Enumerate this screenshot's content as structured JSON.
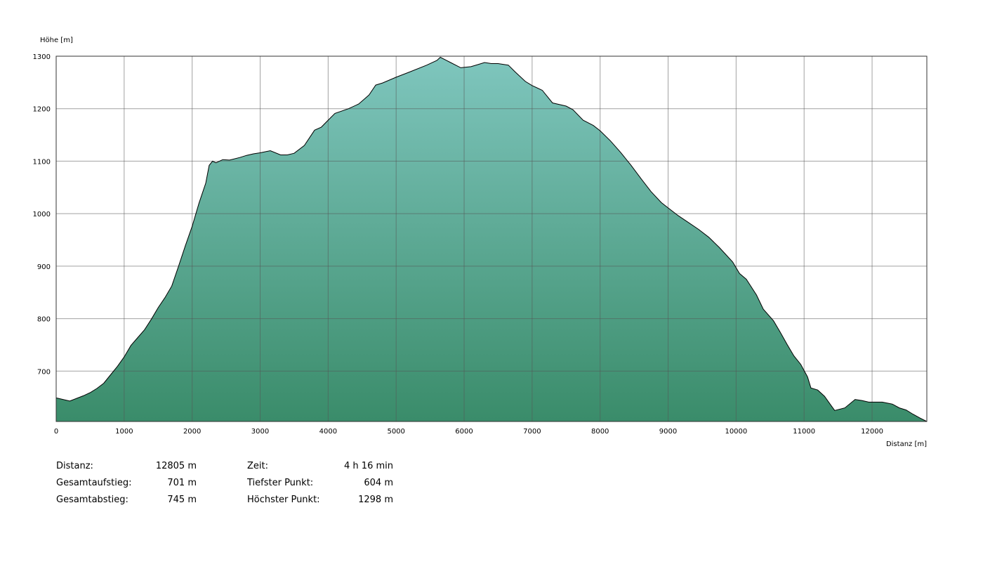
{
  "chart_data": {
    "type": "area",
    "ylabel": "Höhe [m]",
    "xlabel": "Distanz [m]",
    "xlim": [
      0,
      12805
    ],
    "ylim": [
      604,
      1300
    ],
    "x_ticks": [
      0,
      1000,
      2000,
      3000,
      4000,
      5000,
      6000,
      7000,
      8000,
      9000,
      10000,
      11000,
      12000
    ],
    "y_ticks": [
      700,
      800,
      900,
      1000,
      1100,
      1200,
      1300
    ],
    "grid": true,
    "fill_colors": {
      "top": "#7fc6be",
      "bottom": "#3a8c6a",
      "line": "#000000"
    },
    "series": [
      {
        "points": [
          [
            0,
            649
          ],
          [
            200,
            643
          ],
          [
            400,
            653
          ],
          [
            500,
            659
          ],
          [
            600,
            667
          ],
          [
            700,
            677
          ],
          [
            800,
            693
          ],
          [
            900,
            709
          ],
          [
            1000,
            727
          ],
          [
            1100,
            749
          ],
          [
            1200,
            764
          ],
          [
            1300,
            779
          ],
          [
            1400,
            799
          ],
          [
            1500,
            821
          ],
          [
            1600,
            840
          ],
          [
            1700,
            862
          ],
          [
            1800,
            900
          ],
          [
            1900,
            939
          ],
          [
            2000,
            976
          ],
          [
            2100,
            1020
          ],
          [
            2200,
            1058
          ],
          [
            2250,
            1092
          ],
          [
            2300,
            1100
          ],
          [
            2350,
            1097
          ],
          [
            2450,
            1103
          ],
          [
            2550,
            1102
          ],
          [
            2700,
            1107
          ],
          [
            2800,
            1111
          ],
          [
            2900,
            1114
          ],
          [
            3000,
            1116
          ],
          [
            3150,
            1120
          ],
          [
            3300,
            1112
          ],
          [
            3400,
            1112
          ],
          [
            3500,
            1115
          ],
          [
            3650,
            1130
          ],
          [
            3800,
            1159
          ],
          [
            3900,
            1165
          ],
          [
            4000,
            1178
          ],
          [
            4100,
            1191
          ],
          [
            4300,
            1200
          ],
          [
            4450,
            1209
          ],
          [
            4600,
            1226
          ],
          [
            4700,
            1245
          ],
          [
            4800,
            1249
          ],
          [
            5000,
            1260
          ],
          [
            5200,
            1270
          ],
          [
            5450,
            1283
          ],
          [
            5600,
            1292
          ],
          [
            5650,
            1298
          ],
          [
            5800,
            1288
          ],
          [
            5950,
            1278
          ],
          [
            6100,
            1280
          ],
          [
            6200,
            1284
          ],
          [
            6300,
            1288
          ],
          [
            6400,
            1286
          ],
          [
            6500,
            1286
          ],
          [
            6650,
            1283
          ],
          [
            6750,
            1270
          ],
          [
            6900,
            1252
          ],
          [
            7000,
            1244
          ],
          [
            7150,
            1235
          ],
          [
            7300,
            1211
          ],
          [
            7500,
            1205
          ],
          [
            7600,
            1198
          ],
          [
            7750,
            1178
          ],
          [
            7900,
            1168
          ],
          [
            8000,
            1158
          ],
          [
            8150,
            1139
          ],
          [
            8300,
            1117
          ],
          [
            8450,
            1093
          ],
          [
            8600,
            1067
          ],
          [
            8750,
            1042
          ],
          [
            8900,
            1021
          ],
          [
            9000,
            1011
          ],
          [
            9150,
            996
          ],
          [
            9300,
            983
          ],
          [
            9450,
            970
          ],
          [
            9600,
            955
          ],
          [
            9750,
            936
          ],
          [
            9850,
            922
          ],
          [
            9950,
            908
          ],
          [
            10050,
            886
          ],
          [
            10150,
            875
          ],
          [
            10300,
            845
          ],
          [
            10400,
            818
          ],
          [
            10550,
            796
          ],
          [
            10650,
            774
          ],
          [
            10750,
            751
          ],
          [
            10850,
            729
          ],
          [
            10950,
            713
          ],
          [
            11050,
            689
          ],
          [
            11100,
            668
          ],
          [
            11200,
            664
          ],
          [
            11300,
            652
          ],
          [
            11400,
            634
          ],
          [
            11450,
            625
          ],
          [
            11600,
            630
          ],
          [
            11750,
            646
          ],
          [
            11850,
            644
          ],
          [
            11950,
            641
          ],
          [
            12050,
            641
          ],
          [
            12150,
            641
          ],
          [
            12300,
            637
          ],
          [
            12400,
            630
          ],
          [
            12500,
            626
          ],
          [
            12600,
            618
          ],
          [
            12700,
            611
          ],
          [
            12805,
            604
          ]
        ]
      }
    ]
  },
  "stats": {
    "col1": [
      {
        "label": "Distanz:",
        "value": "12805 m"
      },
      {
        "label": "Gesamtaufstieg:",
        "value": "701 m"
      },
      {
        "label": "Gesamtabstieg:",
        "value": "745 m"
      }
    ],
    "col2": [
      {
        "label": "Zeit:",
        "value": "4 h 16 min"
      },
      {
        "label": "Tiefster Punkt:",
        "value": "604 m"
      },
      {
        "label": "Höchster Punkt:",
        "value": "1298 m"
      }
    ]
  }
}
